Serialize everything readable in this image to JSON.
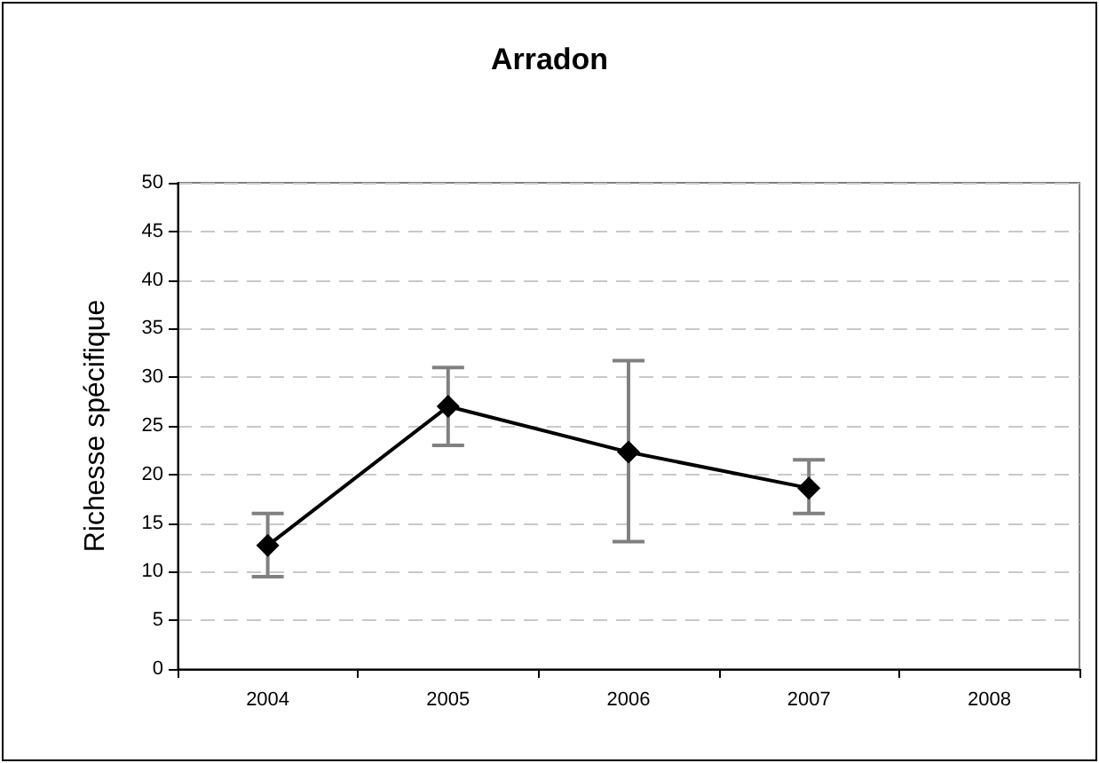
{
  "chart_data": {
    "type": "line",
    "title": "Arradon",
    "ylabel": "Richesse spécifique",
    "categories": [
      "2004",
      "2005",
      "2006",
      "2007",
      "2008"
    ],
    "series": [
      {
        "color": "#000000",
        "values": [
          12.7,
          27.0,
          22.3,
          18.6,
          null
        ],
        "errors": [
          [
            9.5,
            16.0
          ],
          [
            23.0,
            31.0
          ],
          [
            13.1,
            31.7
          ],
          [
            16.0,
            21.5
          ],
          null
        ]
      }
    ],
    "ylim": [
      0,
      50
    ],
    "yticks": [
      0,
      5,
      10,
      15,
      20,
      25,
      30,
      35,
      40,
      45,
      50
    ],
    "grid": "y",
    "marker": "diamond",
    "line_style": "solid"
  }
}
